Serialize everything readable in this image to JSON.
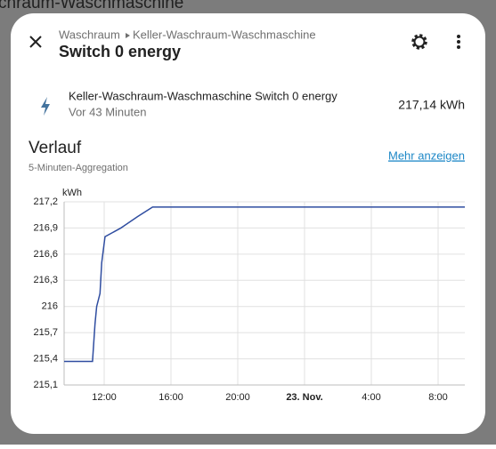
{
  "background": {
    "title": "chraum-Waschmaschine"
  },
  "header": {
    "breadcrumb": [
      "Waschraum",
      "Keller-Waschraum-Waschmaschine"
    ],
    "title": "Switch 0 energy"
  },
  "entity": {
    "name": "Keller-Waschraum-Waschmaschine Switch 0 energy",
    "time": "Vor 43 Minuten",
    "state": "217,14 kWh"
  },
  "history": {
    "title": "Verlauf",
    "subtitle": "5-Minuten-Aggregation",
    "link": "Mehr anzeigen"
  },
  "chart_data": {
    "type": "line",
    "y_label": "kWh",
    "x": [
      9.6,
      11.3,
      11.45,
      11.55,
      11.75,
      11.85,
      12.05,
      13.0,
      14.0,
      14.9,
      33.6
    ],
    "series": [
      {
        "name": "Keller-Waschraum-Waschmaschine Switch 0 energy",
        "color": "#2f4da0",
        "values": [
          215.37,
          215.37,
          215.8,
          216.0,
          216.15,
          216.5,
          216.8,
          216.9,
          217.03,
          217.14,
          217.14
        ]
      }
    ],
    "xlim": [
      9.6,
      33.6
    ],
    "xticks": [
      {
        "value": 12,
        "label": "12:00"
      },
      {
        "value": 16,
        "label": "16:00"
      },
      {
        "value": 20,
        "label": "20:00"
      },
      {
        "value": 24,
        "label": "23. Nov."
      },
      {
        "value": 28,
        "label": "4:00"
      },
      {
        "value": 32,
        "label": "8:00"
      }
    ],
    "ylim": [
      215.1,
      217.2
    ],
    "yticks": [
      {
        "value": 215.1,
        "label": "215,1"
      },
      {
        "value": 215.4,
        "label": "215,4"
      },
      {
        "value": 215.7,
        "label": "215,7"
      },
      216,
      {
        "value": 216.3,
        "label": "216,3"
      },
      {
        "value": 216.6,
        "label": "216,6"
      },
      {
        "value": 216.9,
        "label": "216,9"
      },
      {
        "value": 217.2,
        "label": "217,2"
      }
    ],
    "grid": true
  }
}
